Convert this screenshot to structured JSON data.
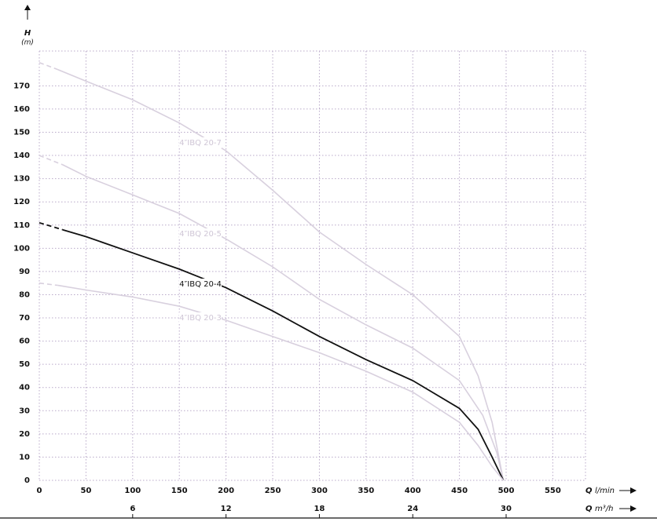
{
  "chart_data": {
    "type": "line",
    "y_label": "H",
    "y_unit": "(m)",
    "x_label": "Q",
    "x_unit": "l/min",
    "x2_label": "Q",
    "x2_unit": "m³/h",
    "xlim": [
      0,
      585
    ],
    "xticks": [
      0,
      50,
      100,
      150,
      200,
      250,
      300,
      350,
      400,
      450,
      500,
      550
    ],
    "x2lim": [
      0,
      35.1
    ],
    "x2ticks": [
      6,
      12,
      18,
      24,
      30
    ],
    "ylim": [
      0,
      185
    ],
    "yticks": [
      0,
      10,
      20,
      30,
      40,
      50,
      60,
      70,
      80,
      90,
      100,
      110,
      120,
      130,
      140,
      150,
      160,
      170
    ],
    "grid": true,
    "series": [
      {
        "name": "4″IBQ 20-7",
        "color": "#d8d0de",
        "dashed_x": [
          0,
          20
        ],
        "dashed_values": [
          180,
          177
        ],
        "x": [
          20,
          50,
          100,
          150,
          200,
          250,
          300,
          350,
          400,
          450,
          470,
          485,
          497
        ],
        "values": [
          177,
          172,
          164,
          154,
          142,
          125,
          107,
          93,
          80,
          62,
          45,
          25,
          0
        ]
      },
      {
        "name": "4″IBQ 20-5",
        "color": "#d8d0de",
        "dashed_x": [
          0,
          25
        ],
        "dashed_values": [
          140,
          136
        ],
        "x": [
          25,
          50,
          100,
          150,
          200,
          250,
          300,
          350,
          400,
          450,
          475,
          490,
          497
        ],
        "values": [
          136,
          131,
          123,
          115,
          104,
          92,
          78,
          67,
          57,
          43,
          28,
          12,
          0
        ]
      },
      {
        "name": "4″IBQ 20-4",
        "color": "#111111",
        "dashed_x": [
          0,
          25
        ],
        "dashed_values": [
          111,
          108
        ],
        "x": [
          25,
          50,
          100,
          150,
          200,
          250,
          300,
          350,
          400,
          450,
          470,
          485,
          497
        ],
        "values": [
          108,
          105,
          98,
          91,
          83,
          73,
          62,
          52,
          43,
          31,
          22,
          10,
          0
        ]
      },
      {
        "name": "4″IBQ 20-3",
        "color": "#d8d0de",
        "dashed_x": [
          0,
          20
        ],
        "dashed_values": [
          85,
          84
        ],
        "x": [
          20,
          50,
          100,
          150,
          200,
          250,
          300,
          350,
          400,
          450,
          470,
          485,
          497
        ],
        "values": [
          84,
          82,
          79,
          75,
          69,
          62,
          55,
          47,
          38,
          25,
          15,
          6,
          0
        ]
      }
    ]
  }
}
